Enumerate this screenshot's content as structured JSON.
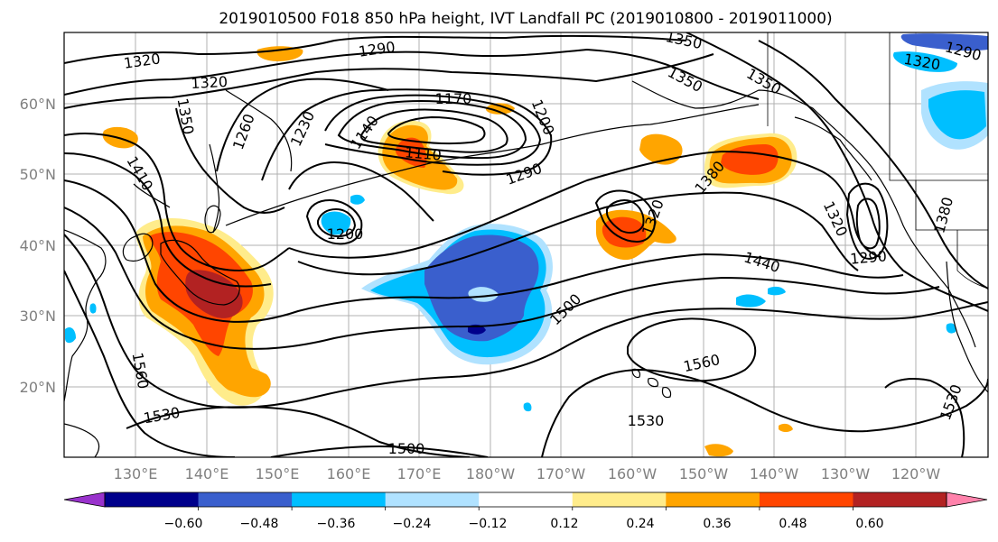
{
  "title": "2019010500 F018 850 hPa height, IVT Landfall PC (2019010800 - 2019011000)",
  "map": {
    "lat_labels": [
      "60°N",
      "50°N",
      "40°N",
      "30°N",
      "20°N"
    ],
    "lon_labels": [
      "130°E",
      "140°E",
      "150°E",
      "160°E",
      "170°E",
      "180°W",
      "170°W",
      "160°W",
      "150°W",
      "140°W",
      "130°W",
      "120°W"
    ],
    "contour_labels": [
      "1320",
      "1320",
      "1290",
      "1350",
      "1350",
      "1350",
      "1320",
      "1290",
      "1350",
      "1260",
      "1230",
      "1170",
      "1140",
      "1110",
      "1200",
      "1290",
      "1380",
      "1410",
      "1320",
      "1320",
      "1290",
      "1380",
      "1200",
      "1440",
      "1500",
      "1560",
      "1560",
      "1530",
      "1530",
      "1500",
      "1530"
    ]
  },
  "colorbar": {
    "labels": [
      "−0.60",
      "−0.48",
      "−0.36",
      "−0.24",
      "−0.12",
      "0.12",
      "0.24",
      "0.36",
      "0.48",
      "0.60"
    ],
    "colors": [
      "#9932cc",
      "#00008b",
      "#3a5fcd",
      "#00bfff",
      "#b0e2ff",
      "#ffffff",
      "#ffec8b",
      "#ffa500",
      "#ff4500",
      "#b22222",
      "#ff82ab"
    ]
  },
  "fill_colors": {
    "neg_light": "#b0e2ff",
    "neg_mid": "#00bfff",
    "neg_dark": "#3a5fcd",
    "neg_darkest": "#00008b",
    "pos_light": "#ffec8b",
    "pos_mid": "#ffa500",
    "pos_dark": "#ff4500",
    "pos_darkest": "#b22222"
  }
}
